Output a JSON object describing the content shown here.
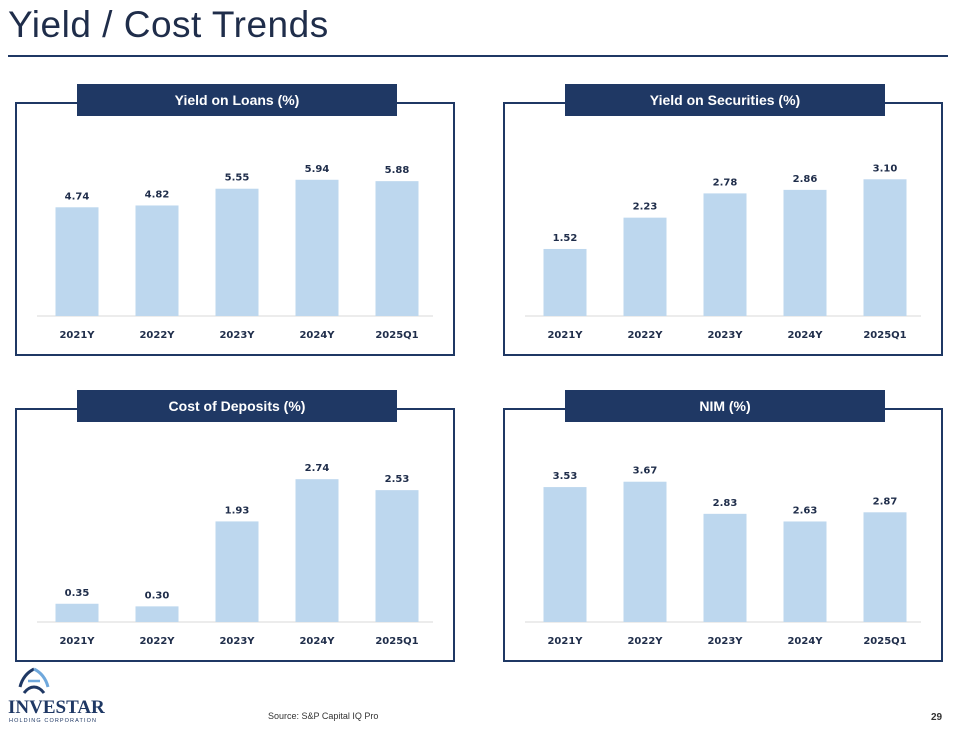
{
  "page": {
    "title": "Yield / Cost Trends",
    "source": "Source: S&P Capital IQ Pro",
    "page_number": "29"
  },
  "logo": {
    "name": "INVESTAR",
    "subtitle": "HOLDING CORPORATION"
  },
  "colors": {
    "navy": "#1f3864",
    "bar": "#bdd7ee"
  },
  "chart_data": [
    {
      "type": "bar",
      "title": "Yield on Loans (%)",
      "categories": [
        "2021Y",
        "2022Y",
        "2023Y",
        "2024Y",
        "2025Q1"
      ],
      "values": [
        4.74,
        4.82,
        5.55,
        5.94,
        5.88
      ],
      "labels": [
        "4.74",
        "4.82",
        "5.55",
        "5.94",
        "5.88"
      ],
      "ylim": [
        0,
        7.5
      ]
    },
    {
      "type": "bar",
      "title": "Yield on Securities (%)",
      "categories": [
        "2021Y",
        "2022Y",
        "2023Y",
        "2024Y",
        "2025Q1"
      ],
      "values": [
        1.52,
        2.23,
        2.78,
        2.86,
        3.1
      ],
      "labels": [
        "1.52",
        "2.23",
        "2.78",
        "2.86",
        "3.10"
      ],
      "ylim": [
        0,
        3.9
      ]
    },
    {
      "type": "bar",
      "title": "Cost of Deposits (%)",
      "categories": [
        "2021Y",
        "2022Y",
        "2023Y",
        "2024Y",
        "2025Q1"
      ],
      "values": [
        0.35,
        0.3,
        1.93,
        2.74,
        2.53
      ],
      "labels": [
        "0.35",
        "0.30",
        "1.93",
        "2.74",
        "2.53"
      ],
      "ylim": [
        0,
        3.3
      ]
    },
    {
      "type": "bar",
      "title": "NIM (%)",
      "categories": [
        "2021Y",
        "2022Y",
        "2023Y",
        "2024Y",
        "2025Q1"
      ],
      "values": [
        3.53,
        3.67,
        2.83,
        2.63,
        2.87
      ],
      "labels": [
        "3.53",
        "3.67",
        "2.83",
        "2.63",
        "2.87"
      ],
      "ylim": [
        0,
        4.5
      ]
    }
  ]
}
